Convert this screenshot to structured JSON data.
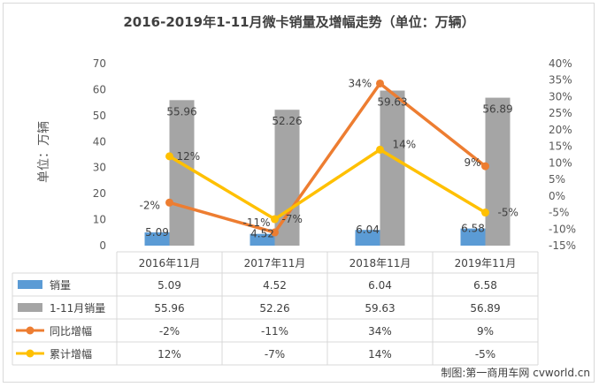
{
  "chart_data": {
    "type": "bar",
    "title": "2016-2019年1-11月微卡销量及增幅走势（单位：万辆）",
    "ylabel": "单位：万辆",
    "categories": [
      "2016年11月",
      "2017年11月",
      "2018年11月",
      "2019年11月"
    ],
    "ylim": [
      0,
      70
    ],
    "y_ticks": [
      "0",
      "10",
      "20",
      "30",
      "40",
      "50",
      "60",
      "70"
    ],
    "y2lim": [
      -15,
      40
    ],
    "y2_ticks": [
      "-15%",
      "-10%",
      "-5%",
      "0%",
      "5%",
      "10%",
      "15%",
      "20%",
      "25%",
      "30%",
      "35%",
      "40%"
    ],
    "grid": false,
    "legend": "data-table",
    "series": [
      {
        "name": "销量",
        "kind": "bar",
        "axis": "left",
        "color": "#5b9bd5",
        "values": [
          5.09,
          4.52,
          6.04,
          6.58
        ],
        "labels": [
          "5.09",
          "4.52",
          "6.04",
          "6.58"
        ]
      },
      {
        "name": "1-11月销量",
        "kind": "bar",
        "axis": "left",
        "color": "#a5a5a5",
        "values": [
          55.96,
          52.26,
          59.63,
          56.89
        ],
        "labels": [
          "55.96",
          "52.26",
          "59.63",
          "56.89"
        ]
      },
      {
        "name": "同比增幅",
        "kind": "line",
        "axis": "right",
        "color": "#ed7d31",
        "values": [
          -2,
          -11,
          34,
          9
        ],
        "labels": [
          "-2%",
          "-11%",
          "34%",
          "9%"
        ]
      },
      {
        "name": "累计增幅",
        "kind": "line",
        "axis": "right",
        "color": "#ffc000",
        "values": [
          12,
          -7,
          14,
          -5
        ],
        "labels": [
          "12%",
          "-7%",
          "14%",
          "-5%"
        ]
      }
    ]
  },
  "credit": "制图:第一商用车网 cvworld.cn"
}
